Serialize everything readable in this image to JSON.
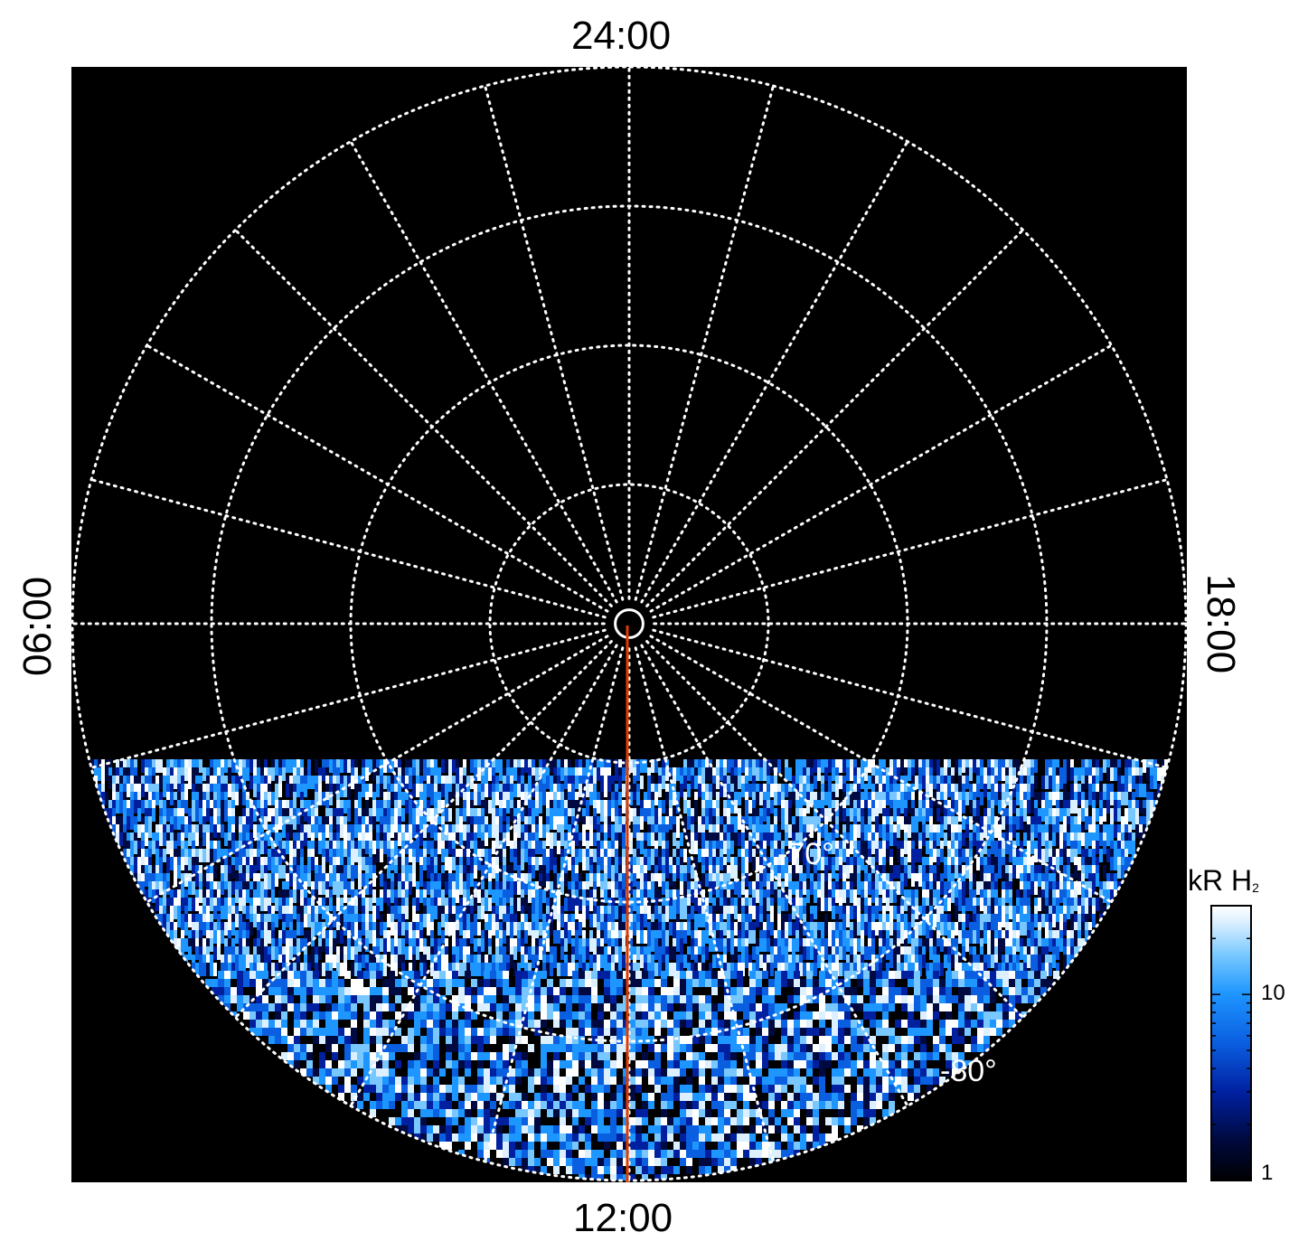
{
  "chart_data": {
    "type": "heatmap",
    "projection": "polar",
    "hemisphere_view": "pole-centred",
    "local_time_labels": {
      "top": "24:00",
      "bottom": "12:00",
      "left": "06:00",
      "right": "18:00"
    },
    "latitude_labels": [
      "-70°",
      "-80°"
    ],
    "colatitude_grid_deg": [
      1,
      10,
      20,
      30,
      40
    ],
    "meridian_step_hours": 1,
    "observed_region": "dayside (local times ~05:00–19:00, latitudes -90° to -50°)",
    "reference_line_local_time": "12:00",
    "reference_line_color": "#e03c00",
    "background_color": "#000000",
    "grid_color": "#ffffff",
    "grid_style": "dotted",
    "colorbar": {
      "title": "kR H",
      "title_subscript": "2",
      "scale": "log",
      "range": [
        1,
        30
      ],
      "tick_labels": [
        "1",
        "10"
      ],
      "colormap": [
        "#000000",
        "#000a40",
        "#0020a0",
        "#0a5ee0",
        "#1e96ff",
        "#78c8ff",
        "#dcf0ff",
        "#ffffff"
      ]
    }
  }
}
